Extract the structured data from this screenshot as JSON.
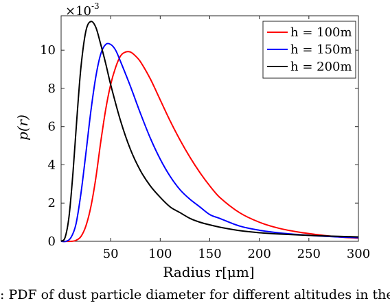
{
  "chart_data": {
    "type": "line",
    "xlabel": "Radius r[μm]",
    "ylabel": "p(r)",
    "y_multiplier": "×10",
    "y_multiplier_exponent": "-3",
    "xlim": [
      0,
      300
    ],
    "ylim": [
      0,
      0.0118
    ],
    "x_ticks": [
      50,
      100,
      150,
      200,
      250,
      300
    ],
    "y_ticks": [
      0,
      0.002,
      0.004,
      0.006,
      0.008,
      0.01
    ],
    "x_tick_labels": [
      "50",
      "100",
      "150",
      "200",
      "250",
      "300"
    ],
    "y_tick_labels": [
      "0",
      "2",
      "4",
      "6",
      "8",
      "10"
    ],
    "grid": false,
    "legend_position": "top-right",
    "series": [
      {
        "name": "h = 100m",
        "color": "#ff0000",
        "x": [
          0,
          10,
          15,
          20,
          25,
          30,
          35,
          40,
          45,
          50,
          55,
          60,
          65,
          70,
          75,
          80,
          90,
          100,
          110,
          120,
          130,
          140,
          150,
          160,
          180,
          200,
          220,
          240,
          260,
          280,
          300
        ],
        "y": [
          0,
          0,
          5e-05,
          0.00025,
          0.0008,
          0.0018,
          0.0033,
          0.0052,
          0.0069,
          0.0082,
          0.0091,
          0.0097,
          0.0099,
          0.0099,
          0.0097,
          0.0094,
          0.0085,
          0.0074,
          0.0063,
          0.0053,
          0.0044,
          0.0036,
          0.0029,
          0.0023,
          0.0015,
          0.001,
          0.00068,
          0.00048,
          0.00034,
          0.00023,
          0.00016
        ]
      },
      {
        "name": "h = 150m",
        "color": "#0000ff",
        "x": [
          0,
          5,
          10,
          15,
          20,
          25,
          30,
          35,
          40,
          45,
          50,
          55,
          60,
          70,
          80,
          90,
          100,
          110,
          120,
          130,
          140,
          150,
          160,
          180,
          200,
          220,
          240,
          260,
          280,
          300
        ],
        "y": [
          0,
          0,
          0.0002,
          0.0009,
          0.0025,
          0.0046,
          0.0068,
          0.0086,
          0.0098,
          0.0103,
          0.0103,
          0.01,
          0.0094,
          0.0081,
          0.0067,
          0.0054,
          0.0043,
          0.0034,
          0.0027,
          0.0022,
          0.0018,
          0.0014,
          0.0012,
          0.0008,
          0.00058,
          0.00044,
          0.00035,
          0.00028,
          0.00023,
          0.00019
        ]
      },
      {
        "name": "h = 200m",
        "color": "#000000",
        "x": [
          0,
          4,
          8,
          12,
          16,
          20,
          25,
          30,
          35,
          40,
          45,
          50,
          60,
          70,
          80,
          90,
          100,
          110,
          120,
          130,
          140,
          150,
          160,
          180,
          200,
          220,
          240,
          260,
          280,
          300
        ],
        "y": [
          0,
          0.0002,
          0.0013,
          0.0036,
          0.0065,
          0.0091,
          0.011,
          0.0115,
          0.0112,
          0.0103,
          0.0093,
          0.0082,
          0.0063,
          0.0048,
          0.0037,
          0.0029,
          0.0023,
          0.0018,
          0.0015,
          0.0012,
          0.001,
          0.00086,
          0.00074,
          0.00056,
          0.00045,
          0.00038,
          0.00033,
          0.00029,
          0.00026,
          0.00023
        ]
      }
    ]
  },
  "caption": ": PDF of dust particle diameter for different altitudes in the Tab"
}
